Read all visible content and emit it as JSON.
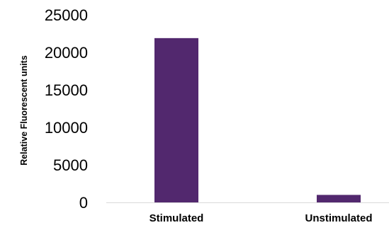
{
  "chart_data": {
    "type": "bar",
    "title": "",
    "xlabel": "",
    "ylabel": "Relative Fluorescent units",
    "categories": [
      "Stimulated",
      "Unstimulated"
    ],
    "values": [
      21900,
      1000
    ],
    "ylim": [
      0,
      25000
    ],
    "yticks": [
      "0",
      "5000",
      "10000",
      "15000",
      "20000",
      "25000"
    ],
    "grid": false,
    "legend": "none",
    "bar_color": "#52286e",
    "axis_color": "#d9d9d9"
  }
}
